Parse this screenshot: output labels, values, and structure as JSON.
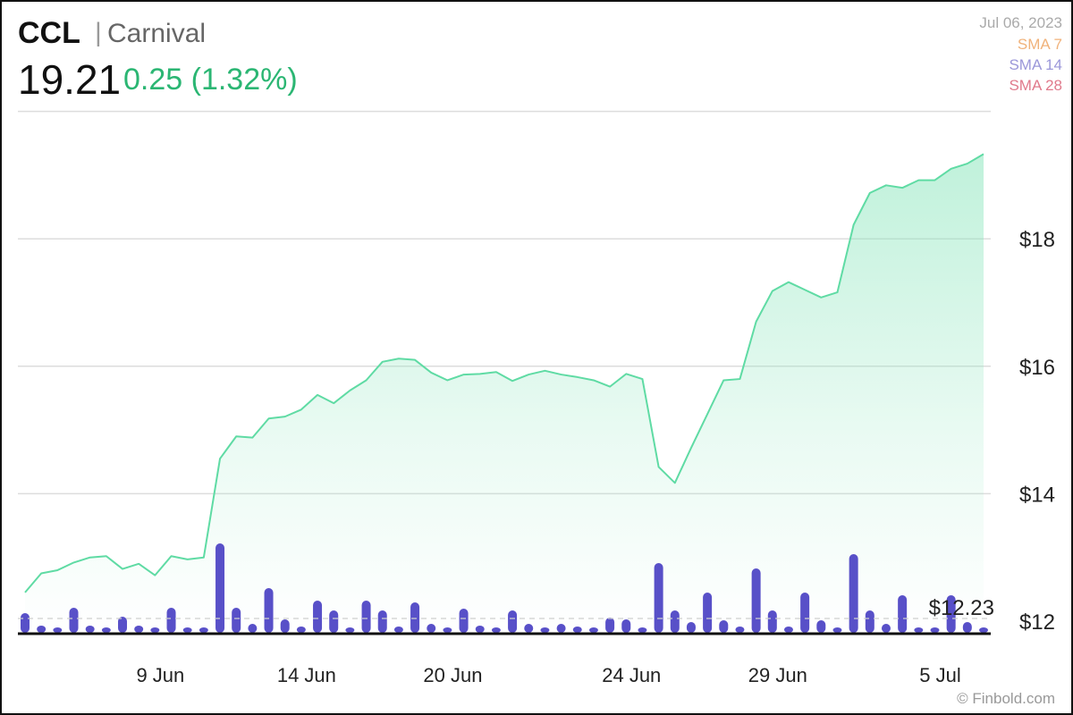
{
  "header": {
    "ticker": "CCL",
    "separator": "|",
    "company": "Carnival",
    "price": "19.21",
    "change": "0.25 (1.32%)",
    "change_color": "#2bb673"
  },
  "meta": {
    "date": "Jul 06, 2023",
    "sma7": {
      "label": "SMA 7",
      "color": "#f0b27a"
    },
    "sma14": {
      "label": "SMA 14",
      "color": "#9b97d9"
    },
    "sma28": {
      "label": "SMA 28",
      "color": "#e07a8c"
    }
  },
  "footer": {
    "credit": "© Finbold.com"
  },
  "chart_data": {
    "type": "line",
    "ylim": [
      11.85,
      19.9
    ],
    "yticks": [
      {
        "value": 12,
        "label": "$12"
      },
      {
        "value": 14,
        "label": "$14"
      },
      {
        "value": 16,
        "label": "$16"
      },
      {
        "value": 18,
        "label": "$18"
      }
    ],
    "gridlines": [
      14,
      16,
      18,
      20
    ],
    "xticks": [
      {
        "index": 8,
        "label": "9 Jun"
      },
      {
        "index": 17,
        "label": "14 Jun"
      },
      {
        "index": 26,
        "label": "20 Jun"
      },
      {
        "index": 37,
        "label": "24 Jun"
      },
      {
        "index": 46,
        "label": "29 Jun"
      },
      {
        "index": 56,
        "label": "5 Jul"
      }
    ],
    "price": [
      12.45,
      12.75,
      12.8,
      12.92,
      13.0,
      13.02,
      12.82,
      12.9,
      12.72,
      13.02,
      12.97,
      13.0,
      14.55,
      14.9,
      14.88,
      15.18,
      15.21,
      15.32,
      15.55,
      15.42,
      15.62,
      15.78,
      16.07,
      16.12,
      16.1,
      15.9,
      15.78,
      15.87,
      15.88,
      15.91,
      15.77,
      15.87,
      15.93,
      15.87,
      15.83,
      15.78,
      15.68,
      15.88,
      15.8,
      14.42,
      14.17,
      14.72,
      15.25,
      15.78,
      15.8,
      16.7,
      17.18,
      17.32,
      17.2,
      17.08,
      17.16,
      18.22,
      18.72,
      18.84,
      18.8,
      18.92,
      18.92,
      19.1,
      19.18,
      19.33
    ],
    "volume_rel": [
      0.22,
      0.08,
      0.04,
      0.28,
      0.08,
      0.05,
      0.18,
      0.08,
      0.05,
      0.28,
      0.05,
      0.04,
      1.0,
      0.28,
      0.1,
      0.5,
      0.15,
      0.07,
      0.36,
      0.25,
      0.04,
      0.36,
      0.25,
      0.07,
      0.34,
      0.1,
      0.04,
      0.27,
      0.08,
      0.04,
      0.25,
      0.1,
      0.04,
      0.1,
      0.07,
      0.03,
      0.17,
      0.15,
      0.04,
      0.78,
      0.25,
      0.12,
      0.45,
      0.14,
      0.07,
      0.72,
      0.25,
      0.07,
      0.45,
      0.14,
      0.04,
      0.88,
      0.25,
      0.1,
      0.42,
      0.06,
      0.02,
      0.42,
      0.12,
      0.05
    ],
    "volume_label": "$12.23",
    "colors": {
      "line": "#5fdba4",
      "area_top": "#8ce6bd",
      "bar": "#5850c8",
      "grid": "#dddddd"
    }
  }
}
